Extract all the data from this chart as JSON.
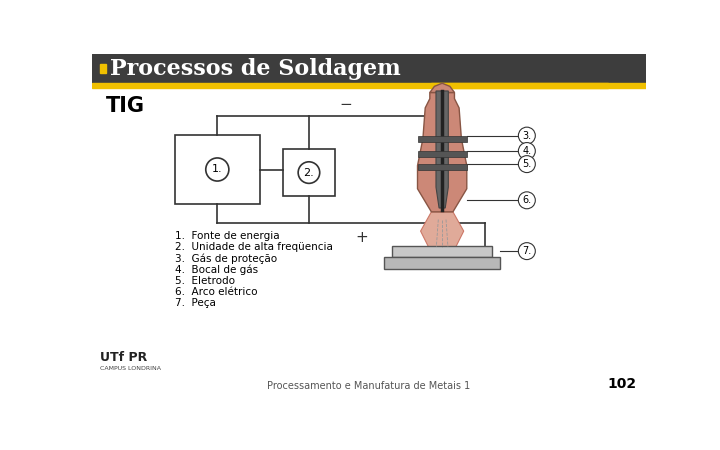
{
  "title": "Processos de Soldagem",
  "subtitle": "TIG",
  "header_bg": "#3d3d3d",
  "header_accent_left": "#f0c000",
  "header_accent_right": "#f0c000",
  "slide_bg": "#ffffff",
  "title_color": "#ffffff",
  "title_bullet_color": "#f0c000",
  "subtitle_color": "#000000",
  "footer_text": "Processamento e Manufatura de Metais 1",
  "page_number": "102",
  "diagram_color": "#333333",
  "torch_pink": "#cc8877",
  "torch_outline": "#885544",
  "labels": [
    "1.  Fonte de energia",
    "2.  Unidade de alta freqüencia",
    "3.  Gás de proteção",
    "4.  Bocal de gás",
    "5.  Eletrodo",
    "6.  Arco elétrico",
    "7.  Peça"
  ]
}
